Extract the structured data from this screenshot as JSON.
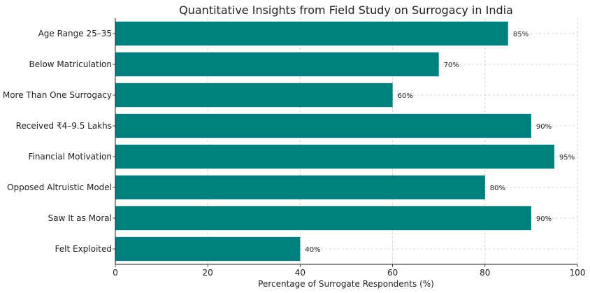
{
  "chart_data": {
    "type": "bar",
    "orientation": "horizontal",
    "title": "Quantitative Insights from Field Study on Surrogacy in India",
    "xlabel": "Percentage of Surrogate Respondents (%)",
    "ylabel": "",
    "xlim": [
      0,
      100
    ],
    "x_ticks": [
      0,
      20,
      40,
      60,
      80,
      100
    ],
    "grid": true,
    "bar_color": "#007f7f",
    "categories": [
      "Age Range 25–35",
      "Below Matriculation",
      "More Than One Surrogacy",
      "Received ₹4–9.5 Lakhs",
      "Financial Motivation",
      "Opposed Altruistic Model",
      "Saw It as Moral",
      "Felt Exploited"
    ],
    "values": [
      85,
      70,
      60,
      90,
      95,
      80,
      90,
      40
    ],
    "value_labels": [
      "85%",
      "70%",
      "60%",
      "90%",
      "95%",
      "80%",
      "90%",
      "40%"
    ]
  }
}
